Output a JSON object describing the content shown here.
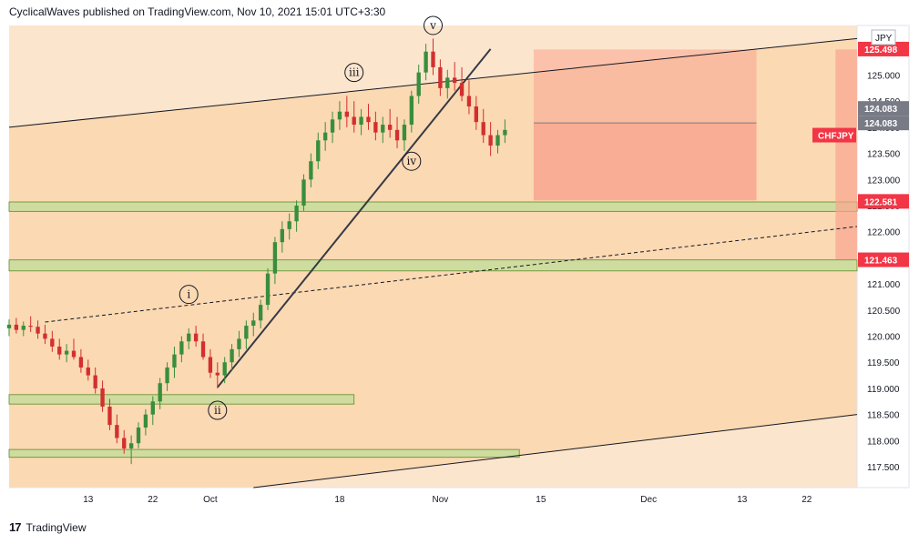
{
  "header": {
    "published": "CyclicalWaves published on TradingView.com, Nov 10, 2021 15:01 UTC+3:30"
  },
  "footer": {
    "brand": "TradingView",
    "logo": "17"
  },
  "chart_data": {
    "type": "candlestick",
    "symbol": "CHFJPY",
    "currency": "JPY",
    "x_ticks": [
      {
        "label": "13",
        "d": 13
      },
      {
        "label": "22",
        "d": 22
      },
      {
        "label": "Oct",
        "d": 30
      },
      {
        "label": "18",
        "d": 48
      },
      {
        "label": "Nov",
        "d": 62
      },
      {
        "label": "15",
        "d": 76
      },
      {
        "label": "Dec",
        "d": 91
      },
      {
        "label": "13",
        "d": 104
      },
      {
        "label": "22",
        "d": 113
      }
    ],
    "x_range": [
      2,
      120
    ],
    "y_ticks": [
      117.5,
      118,
      118.5,
      119,
      119.5,
      120,
      120.5,
      121,
      121.5,
      122,
      122.5,
      123,
      123.5,
      124,
      124.5,
      125
    ],
    "y_range": [
      117.1,
      125.95
    ],
    "price_labels": [
      {
        "text": "125.498",
        "value": 125.498,
        "kind": "red"
      },
      {
        "text": "124.083",
        "value": 124.083,
        "kind": "gray"
      },
      {
        "text": "122.581",
        "value": 122.581,
        "kind": "red"
      },
      {
        "text": "121.463",
        "value": 121.463,
        "kind": "red"
      }
    ],
    "symbol_price": 123.85,
    "support_zones": [
      {
        "d0": 2,
        "d1": 120,
        "y0": 122.39,
        "y1": 122.57
      },
      {
        "d0": 2,
        "d1": 120,
        "y0": 121.25,
        "y1": 121.46
      },
      {
        "d0": 2,
        "d1": 50,
        "y0": 118.7,
        "y1": 118.88
      },
      {
        "d0": 2,
        "d1": 73,
        "y0": 117.68,
        "y1": 117.83
      }
    ],
    "projection": {
      "d0": 75,
      "d1": 106,
      "entry": 124.083,
      "top": 125.49,
      "bottom": 122.6
    },
    "right_zone": {
      "d0": 117,
      "d1": 120,
      "top": 125.49,
      "bottom": 121.47
    },
    "channel_upper": [
      [
        2,
        124.0
      ],
      [
        120,
        125.7
      ]
    ],
    "channel_lower": [
      [
        36,
        117.1
      ],
      [
        120,
        118.5
      ]
    ],
    "dashed_line": [
      [
        7,
        120.27
      ],
      [
        120,
        122.1
      ]
    ],
    "wave_line": [
      [
        31,
        119.02
      ],
      [
        69,
        125.5
      ]
    ],
    "wave_labels": [
      {
        "text": "ⅰ",
        "d": 27,
        "y": 120.8
      },
      {
        "text": "ⅱ",
        "d": 31,
        "y": 118.58
      },
      {
        "text": "ⅲ",
        "d": 50,
        "y": 125.05
      },
      {
        "text": "ⅳ",
        "d": 58,
        "y": 123.35
      },
      {
        "text": "ⅴ",
        "d": 61,
        "y": 125.95
      }
    ],
    "candles": [
      [
        2,
        120.15,
        120.32,
        120.0,
        120.22
      ],
      [
        3,
        120.22,
        120.35,
        120.05,
        120.12
      ],
      [
        4,
        120.12,
        120.28,
        120.0,
        120.2
      ],
      [
        5,
        120.2,
        120.38,
        120.08,
        120.18
      ],
      [
        6,
        120.18,
        120.3,
        119.95,
        120.05
      ],
      [
        7,
        120.05,
        120.22,
        119.85,
        119.95
      ],
      [
        8,
        119.95,
        120.1,
        119.7,
        119.8
      ],
      [
        9,
        119.8,
        119.95,
        119.55,
        119.65
      ],
      [
        10,
        119.65,
        119.85,
        119.5,
        119.72
      ],
      [
        11,
        119.72,
        119.95,
        119.55,
        119.6
      ],
      [
        12,
        119.6,
        119.75,
        119.3,
        119.4
      ],
      [
        13,
        119.4,
        119.55,
        119.15,
        119.25
      ],
      [
        14,
        119.25,
        119.4,
        118.9,
        119.0
      ],
      [
        15,
        119.0,
        119.15,
        118.55,
        118.65
      ],
      [
        16,
        118.65,
        118.8,
        118.2,
        118.3
      ],
      [
        17,
        118.3,
        118.5,
        117.95,
        118.05
      ],
      [
        18,
        118.05,
        118.2,
        117.75,
        117.85
      ],
      [
        19,
        117.85,
        118.1,
        117.55,
        117.95
      ],
      [
        20,
        117.95,
        118.35,
        117.85,
        118.25
      ],
      [
        21,
        118.25,
        118.6,
        118.1,
        118.5
      ],
      [
        22,
        118.5,
        118.85,
        118.3,
        118.75
      ],
      [
        23,
        118.75,
        119.2,
        118.6,
        119.1
      ],
      [
        24,
        119.1,
        119.5,
        118.95,
        119.4
      ],
      [
        25,
        119.4,
        119.8,
        119.2,
        119.65
      ],
      [
        26,
        119.65,
        120.0,
        119.5,
        119.9
      ],
      [
        27,
        119.9,
        120.15,
        119.75,
        120.05
      ],
      [
        28,
        120.05,
        120.2,
        119.8,
        119.9
      ],
      [
        29,
        119.9,
        120.05,
        119.55,
        119.6
      ],
      [
        30,
        119.6,
        119.75,
        119.2,
        119.3
      ],
      [
        31,
        119.3,
        119.5,
        119.0,
        119.25
      ],
      [
        32,
        119.25,
        119.6,
        119.1,
        119.5
      ],
      [
        33,
        119.5,
        119.85,
        119.35,
        119.75
      ],
      [
        34,
        119.75,
        120.1,
        119.6,
        119.95
      ],
      [
        35,
        119.95,
        120.3,
        119.75,
        120.2
      ],
      [
        36,
        120.2,
        120.45,
        120.0,
        120.3
      ],
      [
        37,
        120.3,
        120.7,
        120.15,
        120.6
      ],
      [
        38,
        120.6,
        121.3,
        120.5,
        121.2
      ],
      [
        39,
        121.2,
        121.9,
        121.0,
        121.8
      ],
      [
        40,
        121.8,
        122.2,
        121.6,
        122.05
      ],
      [
        41,
        122.05,
        122.35,
        121.85,
        122.2
      ],
      [
        42,
        122.2,
        122.6,
        122.0,
        122.5
      ],
      [
        43,
        122.5,
        123.1,
        122.4,
        123.0
      ],
      [
        44,
        123.0,
        123.5,
        122.85,
        123.35
      ],
      [
        45,
        123.35,
        123.9,
        123.2,
        123.75
      ],
      [
        46,
        123.75,
        124.1,
        123.55,
        123.9
      ],
      [
        47,
        123.9,
        124.3,
        123.7,
        124.15
      ],
      [
        48,
        124.15,
        124.5,
        123.95,
        124.3
      ],
      [
        49,
        124.3,
        124.6,
        124.0,
        124.2
      ],
      [
        50,
        124.2,
        124.5,
        123.9,
        124.05
      ],
      [
        51,
        124.05,
        124.35,
        123.85,
        124.2
      ],
      [
        52,
        124.2,
        124.45,
        123.95,
        124.1
      ],
      [
        53,
        124.1,
        124.3,
        123.75,
        123.9
      ],
      [
        54,
        123.9,
        124.2,
        123.7,
        124.05
      ],
      [
        55,
        124.05,
        124.35,
        123.8,
        123.95
      ],
      [
        56,
        123.95,
        124.2,
        123.6,
        123.75
      ],
      [
        57,
        123.75,
        124.15,
        123.55,
        124.05
      ],
      [
        58,
        124.05,
        124.7,
        123.9,
        124.6
      ],
      [
        59,
        124.6,
        125.2,
        124.45,
        125.05
      ],
      [
        60,
        125.05,
        125.6,
        124.9,
        125.45
      ],
      [
        61,
        125.45,
        125.7,
        125.0,
        125.15
      ],
      [
        62,
        125.15,
        125.3,
        124.6,
        124.75
      ],
      [
        63,
        124.75,
        125.1,
        124.55,
        124.95
      ],
      [
        64,
        124.95,
        125.25,
        124.7,
        124.85
      ],
      [
        65,
        124.85,
        125.15,
        124.5,
        124.6
      ],
      [
        66,
        124.6,
        124.9,
        124.25,
        124.4
      ],
      [
        67,
        124.4,
        124.6,
        123.95,
        124.1
      ],
      [
        68,
        124.1,
        124.35,
        123.7,
        123.85
      ],
      [
        69,
        123.85,
        124.1,
        123.45,
        123.65
      ],
      [
        70,
        123.65,
        123.95,
        123.5,
        123.85
      ],
      [
        71,
        123.85,
        124.15,
        123.7,
        123.95
      ]
    ]
  },
  "colors": {
    "bg_light": "#fce5cd",
    "bg_dark": "#fbd9b3",
    "zone": "#cfdc9f",
    "zone_border": "#5d8a2a",
    "projection": "#f9a48f",
    "red": "#f23645",
    "gray": "#787b86",
    "candle_red": "#d32f2f",
    "candle_green": "#388e3c"
  }
}
